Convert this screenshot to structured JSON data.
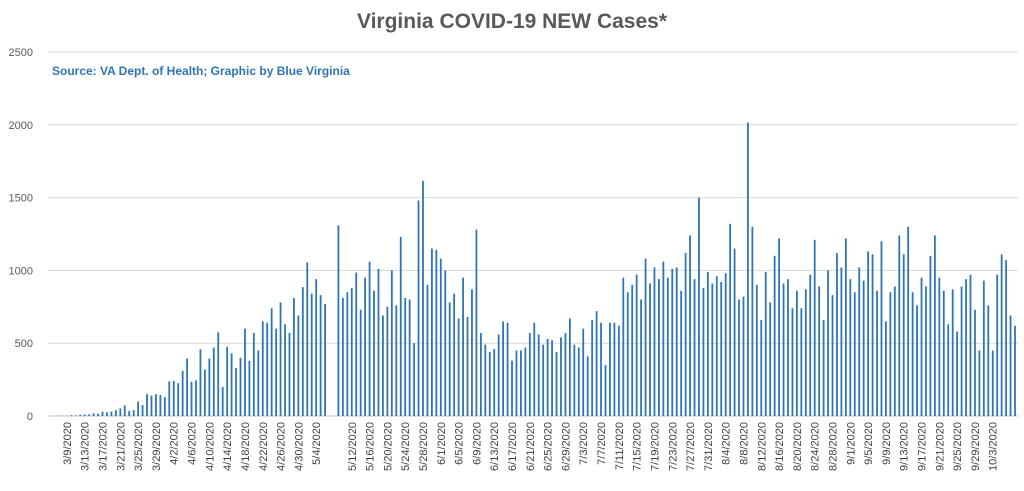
{
  "colors": {
    "bar": "#2E75B6",
    "title": "#595959",
    "subtitle": "#2E75B6",
    "grid": "#D9D9D9",
    "axis": "#BFBFBF"
  },
  "chart_data": {
    "type": "bar",
    "title": "Virginia COVID-19 NEW Cases*",
    "subtitle": "Source: VA Dept. of Health; Graphic by Blue Virginia",
    "xlabel": "",
    "ylabel": "",
    "ylim": [
      0,
      2500
    ],
    "yticks": [
      0,
      500,
      1000,
      1500,
      2000,
      2500
    ],
    "grid": true,
    "legend": "none",
    "x_start": "3/7/2020",
    "xtick_labels": [
      "3/9/2020",
      "3/13/2020",
      "3/17/2020",
      "3/21/2020",
      "3/25/2020",
      "3/29/2020",
      "4/2/2020",
      "4/6/2020",
      "4/10/2020",
      "4/14/2020",
      "4/18/2020",
      "4/22/2020",
      "4/26/2020",
      "4/30/2020",
      "5/4/2020",
      "5/12/2020",
      "5/16/2020",
      "5/20/2020",
      "5/24/2020",
      "5/28/2020",
      "6/1/2020",
      "6/5/2020",
      "6/9/2020",
      "6/13/2020",
      "6/17/2020",
      "6/21/2020",
      "6/25/2020",
      "6/29/2020",
      "7/3/2020",
      "7/7/2020",
      "7/11/2020",
      "7/15/2020",
      "7/19/2020",
      "7/23/2020",
      "7/27/2020",
      "7/31/2020",
      "8/4/2020",
      "8/8/2020",
      "8/12/2020",
      "8/16/2020",
      "8/20/2020",
      "8/24/2020",
      "8/28/2020",
      "9/1/2020",
      "9/5/2020",
      "9/9/2020",
      "9/13/2020",
      "9/17/2020",
      "9/21/2020",
      "9/25/2020",
      "9/29/2020",
      "10/3/2020"
    ],
    "values": [
      2,
      2,
      2,
      5,
      4,
      8,
      11,
      11,
      19,
      16,
      30,
      25,
      30,
      40,
      52,
      73,
      35,
      40,
      100,
      75,
      150,
      140,
      150,
      145,
      130,
      238,
      241,
      225,
      310,
      395,
      235,
      245,
      458,
      320,
      395,
      470,
      575,
      200,
      475,
      430,
      330,
      400,
      600,
      380,
      570,
      450,
      650,
      640,
      740,
      600,
      780,
      630,
      570,
      810,
      690,
      885,
      1055,
      840,
      940,
      830,
      770,
      0,
      0,
      1310,
      810,
      850,
      880,
      985,
      730,
      950,
      1060,
      860,
      1010,
      690,
      750,
      1000,
      760,
      1230,
      810,
      800,
      500,
      1480,
      1615,
      900,
      1150,
      1140,
      1080,
      1000,
      780,
      840,
      670,
      950,
      680,
      870,
      1280,
      570,
      490,
      440,
      460,
      560,
      650,
      640,
      380,
      450,
      450,
      470,
      570,
      640,
      560,
      490,
      530,
      520,
      440,
      540,
      570,
      670,
      490,
      470,
      600,
      410,
      660,
      720,
      640,
      350,
      640,
      640,
      620,
      950,
      850,
      900,
      970,
      800,
      1080,
      910,
      1020,
      940,
      1060,
      950,
      1010,
      1020,
      860,
      1120,
      1240,
      940,
      1500,
      880,
      990,
      910,
      960,
      920,
      980,
      1320,
      1150,
      800,
      820,
      2015,
      1300,
      900,
      660,
      990,
      780,
      1100,
      1220,
      910,
      940,
      740,
      860,
      740,
      870,
      970,
      1210,
      890,
      660,
      1000,
      830,
      1120,
      1020,
      1220,
      940,
      850,
      1020,
      930,
      1130,
      1110,
      860,
      1200,
      650,
      850,
      890,
      1240,
      1110,
      1300,
      850,
      760,
      950,
      890,
      1100,
      1240,
      950,
      860,
      630,
      870,
      580,
      890,
      940,
      970,
      730,
      450,
      930,
      760,
      450,
      970,
      1110,
      1070,
      690,
      620
    ]
  }
}
